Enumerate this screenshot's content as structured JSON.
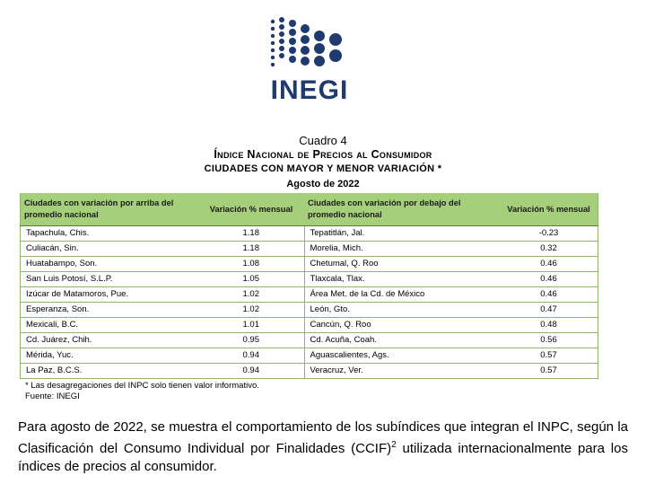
{
  "logo": {
    "text": "INEGI",
    "color": "#1f3a6e"
  },
  "caption": {
    "number": "Cuadro 4",
    "title": "Índice Nacional de Precios al Consumidor",
    "subtitle": "CIUDADES CON MAYOR Y MENOR VARIACIÓN *",
    "period": "Agosto de 2022"
  },
  "table": {
    "headers": [
      "Ciudades con variación por arriba del promedio nacional",
      "Variación % mensual",
      "Ciudades con variación por debajo del promedio nacional",
      "Variación % mensual"
    ],
    "header_color": "#a6cf7c",
    "rows": [
      [
        "Tapachula, Chis.",
        "1.18",
        "Tepatitlán, Jal.",
        "-0.23"
      ],
      [
        "Culiacán, Sin.",
        "1.18",
        "Morelia, Mich.",
        "0.32"
      ],
      [
        "Huatabampo, Son.",
        "1.08",
        "Chetumal, Q. Roo",
        "0.46"
      ],
      [
        "San Luis Potosí, S.L.P.",
        "1.05",
        "Tlaxcala, Tlax.",
        "0.46"
      ],
      [
        "Izúcar de Matamoros, Pue.",
        "1.02",
        "Área Met. de la Cd. de México",
        "0.46"
      ],
      [
        "Esperanza, Son.",
        "1.02",
        "León, Gto.",
        "0.47"
      ],
      [
        "Mexicali, B.C.",
        "1.01",
        "Cancún, Q. Roo",
        "0.48"
      ],
      [
        "Cd. Juárez, Chih.",
        "0.95",
        "Cd. Acuña, Coah.",
        "0.56"
      ],
      [
        "Mérida, Yuc.",
        "0.94",
        "Aguascalientes, Ags.",
        "0.57"
      ],
      [
        "La Paz, B.C.S.",
        "0.94",
        "Veracruz, Ver.",
        "0.57"
      ]
    ]
  },
  "notes": {
    "note": "*  Las desagregaciones del INPC solo tienen valor informativo.",
    "source": "Fuente: INEGI"
  },
  "paragraph": {
    "text": "Para agosto de 2022, se muestra el comportamiento de los subíndices que integran el INPC, según la Clasificación del Consumo Individual por Finalidades (CCIF)",
    "footnote_ref": "2",
    "text_end": " utilizada internacionalmente para los índices de precios al consumidor."
  }
}
